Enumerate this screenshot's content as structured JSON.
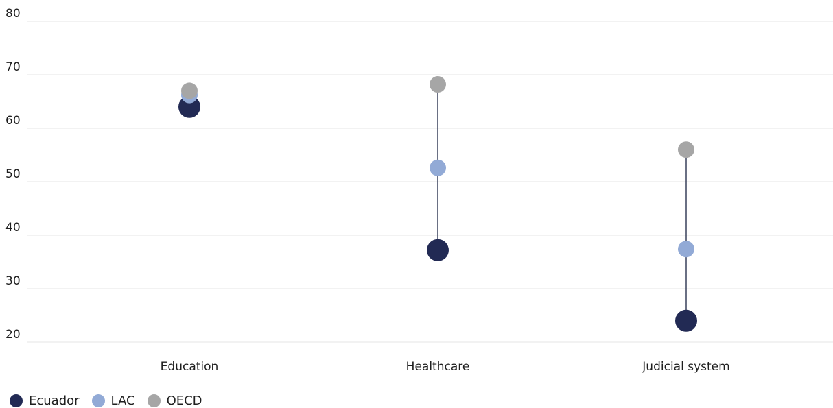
{
  "chart_data": {
    "type": "scatter",
    "title": "",
    "xlabel": "",
    "ylabel": "",
    "categories": [
      "Education",
      "Healthcare",
      "Judicial system"
    ],
    "ylim": [
      20,
      80
    ],
    "yticks": [
      20,
      30,
      40,
      50,
      60,
      70,
      80
    ],
    "grid": true,
    "legend_position": "bottom-left",
    "series": [
      {
        "name": "Ecuador",
        "color": "#222a54",
        "values": [
          64,
          37.2,
          24
        ]
      },
      {
        "name": "LAC",
        "color": "#92aad6",
        "values": [
          66.2,
          52.6,
          37.4
        ]
      },
      {
        "name": "OECD",
        "color": "#a6a6a6",
        "values": [
          67,
          68.2,
          56
        ]
      }
    ]
  }
}
